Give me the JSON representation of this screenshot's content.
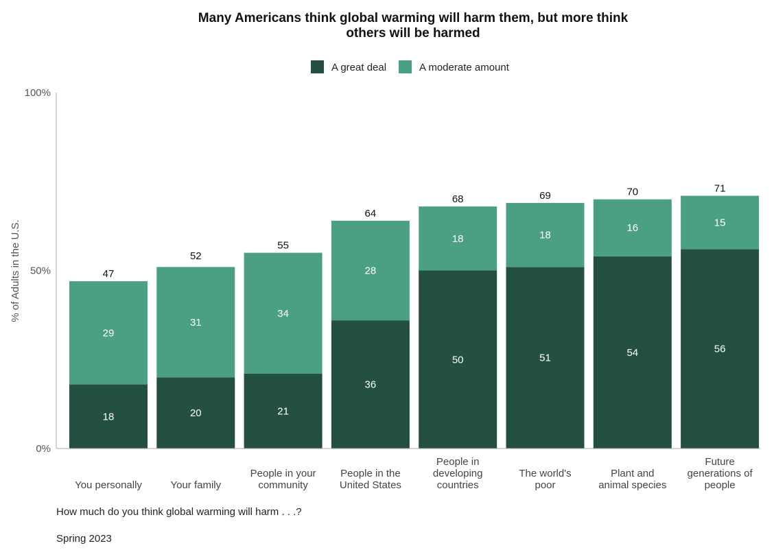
{
  "colors": {
    "great_deal": "#23503f",
    "moderate": "#4ba083",
    "axis": "#999999"
  },
  "chart_data": {
    "type": "bar",
    "stacked": true,
    "title_lines": [
      "Many Americans think global warming will harm them, but more think",
      "others will be harmed"
    ],
    "legend": [
      "A great deal",
      "A moderate amount"
    ],
    "legend_placement": "top-center",
    "ylabel": "% of Adults in the U.S.",
    "xlabel": "How much do you think global warming will harm . . .?",
    "note": "Spring 2023",
    "ylim": [
      0,
      100
    ],
    "yticks": [
      {
        "value": 0,
        "label": "0%"
      },
      {
        "value": 50,
        "label": "50%"
      },
      {
        "value": 100,
        "label": "100%"
      }
    ],
    "categories": [
      [
        "You personally"
      ],
      [
        "Your family"
      ],
      [
        "People in your",
        "community"
      ],
      [
        "People in the",
        "United States"
      ],
      [
        "People in",
        "developing",
        "countries"
      ],
      [
        "The world's",
        "poor"
      ],
      [
        "Plant and",
        "animal species"
      ],
      [
        "Future",
        "generations of",
        "people"
      ]
    ],
    "series": [
      {
        "name": "A great deal",
        "values": [
          18,
          20,
          21,
          36,
          50,
          51,
          54,
          56
        ]
      },
      {
        "name": "A moderate amount",
        "values": [
          29,
          31,
          34,
          28,
          18,
          18,
          16,
          15
        ]
      }
    ],
    "totals": [
      47,
      52,
      55,
      64,
      68,
      69,
      70,
      71
    ]
  }
}
